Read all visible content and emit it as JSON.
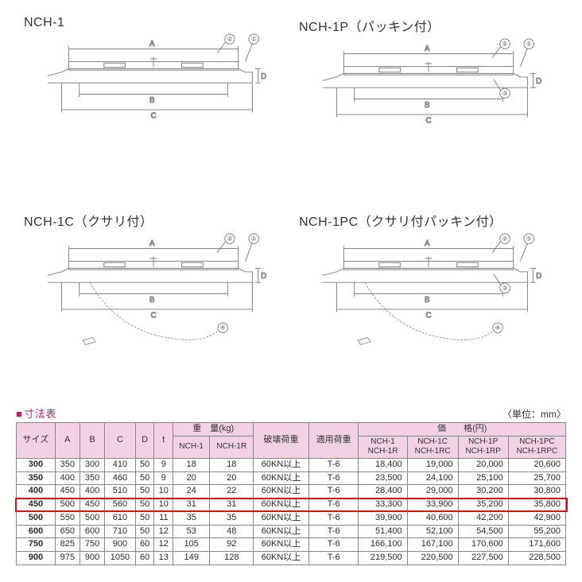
{
  "diagrams": [
    {
      "title": "NCH-1",
      "callouts": [
        "②",
        "①"
      ],
      "dims": [
        "A",
        "B",
        "C",
        "D"
      ],
      "has_chain": false,
      "has_packing": false
    },
    {
      "title": "NCH-1P（パッキン付）",
      "callouts": [
        "②",
        "①",
        "③"
      ],
      "dims": [
        "A",
        "B",
        "C",
        "D"
      ],
      "has_chain": false,
      "has_packing": true
    },
    {
      "title": "NCH-1C（クサリ付）",
      "callouts": [
        "②",
        "①",
        "④"
      ],
      "dims": [
        "A",
        "B",
        "C",
        "D"
      ],
      "has_chain": true,
      "has_packing": false
    },
    {
      "title": "NCH-1PC（クサリ付パッキン付）",
      "callouts": [
        "②",
        "①",
        "③",
        "④"
      ],
      "dims": [
        "A",
        "B",
        "C",
        "D"
      ],
      "has_chain": true,
      "has_packing": true
    }
  ],
  "table_title": "寸法表",
  "unit_note": "〈単位：mm〉",
  "headers": {
    "size": "サイズ",
    "dims": [
      "A",
      "B",
      "C",
      "D",
      "t"
    ],
    "weight_group": "重　量(kg)",
    "weight_cols": [
      "NCH-1",
      "NCH-1R"
    ],
    "break_load": "破壊荷重",
    "applied_load": "適用荷重",
    "price_group": "価　　格(円)",
    "price_cols": [
      {
        "l1": "NCH-1",
        "l2": "NCH-1R"
      },
      {
        "l1": "NCH-1C",
        "l2": "NCH-1RC"
      },
      {
        "l1": "NCH-1P",
        "l2": "NCH-1RP"
      },
      {
        "l1": "NCH-1PC",
        "l2": "NCH-1RPC"
      }
    ]
  },
  "rows": [
    {
      "size": "300",
      "A": "350",
      "B": "300",
      "C": "410",
      "D": "50",
      "t": "9",
      "w1": "18",
      "w2": "18",
      "break": "60KN以上",
      "load": "T-6",
      "p1": "18,400",
      "p2": "19,000",
      "p3": "20,000",
      "p4": "20,600",
      "hl": false
    },
    {
      "size": "350",
      "A": "400",
      "B": "350",
      "C": "460",
      "D": "50",
      "t": "9",
      "w1": "20",
      "w2": "20",
      "break": "60KN以上",
      "load": "T-6",
      "p1": "23,500",
      "p2": "24,100",
      "p3": "25,100",
      "p4": "25,700",
      "hl": false
    },
    {
      "size": "400",
      "A": "450",
      "B": "400",
      "C": "510",
      "D": "50",
      "t": "10",
      "w1": "24",
      "w2": "22",
      "break": "60KN以上",
      "load": "T-6",
      "p1": "28,400",
      "p2": "29,000",
      "p3": "30,200",
      "p4": "30,800",
      "hl": false
    },
    {
      "size": "450",
      "A": "500",
      "B": "450",
      "C": "560",
      "D": "50",
      "t": "10",
      "w1": "31",
      "w2": "31",
      "break": "60KN以上",
      "load": "T-6",
      "p1": "33,300",
      "p2": "33,900",
      "p3": "35,200",
      "p4": "35,800",
      "hl": true
    },
    {
      "size": "500",
      "A": "550",
      "B": "500",
      "C": "610",
      "D": "50",
      "t": "11",
      "w1": "35",
      "w2": "35",
      "break": "60KN以上",
      "load": "T-6",
      "p1": "39,900",
      "p2": "40,600",
      "p3": "42,200",
      "p4": "42,900",
      "hl": false
    },
    {
      "size": "600",
      "A": "650",
      "B": "600",
      "C": "710",
      "D": "50",
      "t": "12",
      "w1": "53",
      "w2": "48",
      "break": "60KN以上",
      "load": "T-6",
      "p1": "51,400",
      "p2": "52,100",
      "p3": "54,500",
      "p4": "55,200",
      "hl": false
    },
    {
      "size": "750",
      "A": "825",
      "B": "750",
      "C": "900",
      "D": "60",
      "t": "12",
      "w1": "105",
      "w2": "92",
      "break": "60KN以上",
      "load": "T-6",
      "p1": "166,100",
      "p2": "167,100",
      "p3": "170,600",
      "p4": "171,600",
      "hl": false
    },
    {
      "size": "900",
      "A": "975",
      "B": "900",
      "C": "1050",
      "D": "60",
      "t": "13",
      "w1": "149",
      "w2": "128",
      "break": "60KN以上",
      "load": "T-6",
      "p1": "219,500",
      "p2": "220,500",
      "p3": "227,500",
      "p4": "228,500",
      "hl": false
    }
  ],
  "colors": {
    "header_bg": "#f3d1e4",
    "title_pink": "#c02070",
    "border": "#888888",
    "highlight": "#e01010",
    "line": "#8a8a8a"
  }
}
